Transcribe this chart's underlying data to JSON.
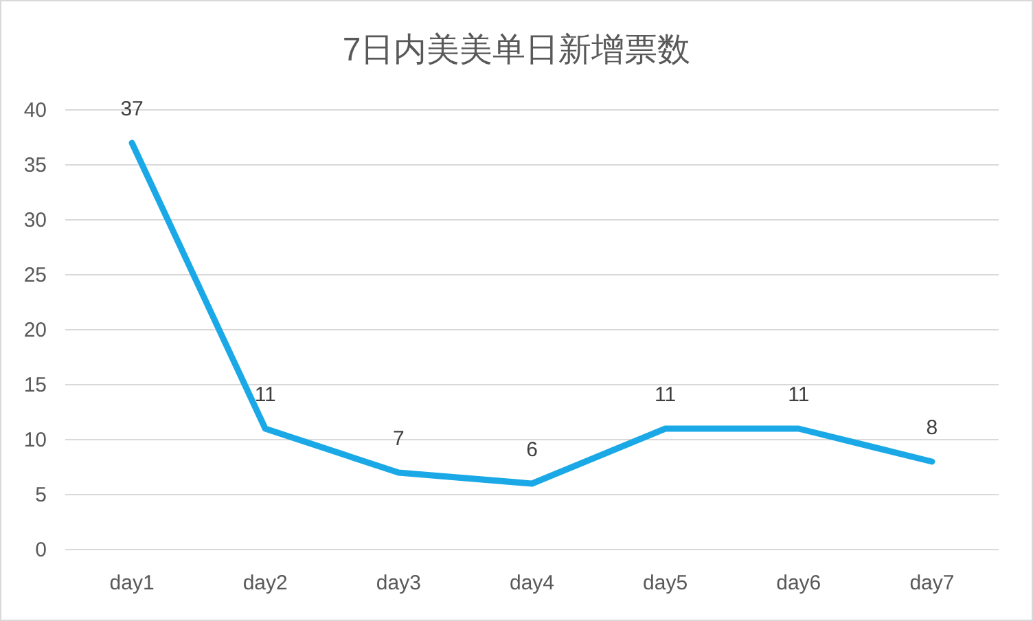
{
  "chart_data": {
    "type": "line",
    "title": "7日内美美单日新增票数",
    "categories": [
      "day1",
      "day2",
      "day3",
      "day4",
      "day5",
      "day6",
      "day7"
    ],
    "series": [
      {
        "color": "#1aa9e6",
        "values": [
          37,
          11,
          7,
          6,
          11,
          11,
          8
        ]
      }
    ],
    "ylim": [
      0,
      40
    ],
    "yticks": [
      0,
      5,
      10,
      15,
      20,
      25,
      30,
      35,
      40
    ],
    "grid": "y",
    "data_labels": true
  }
}
